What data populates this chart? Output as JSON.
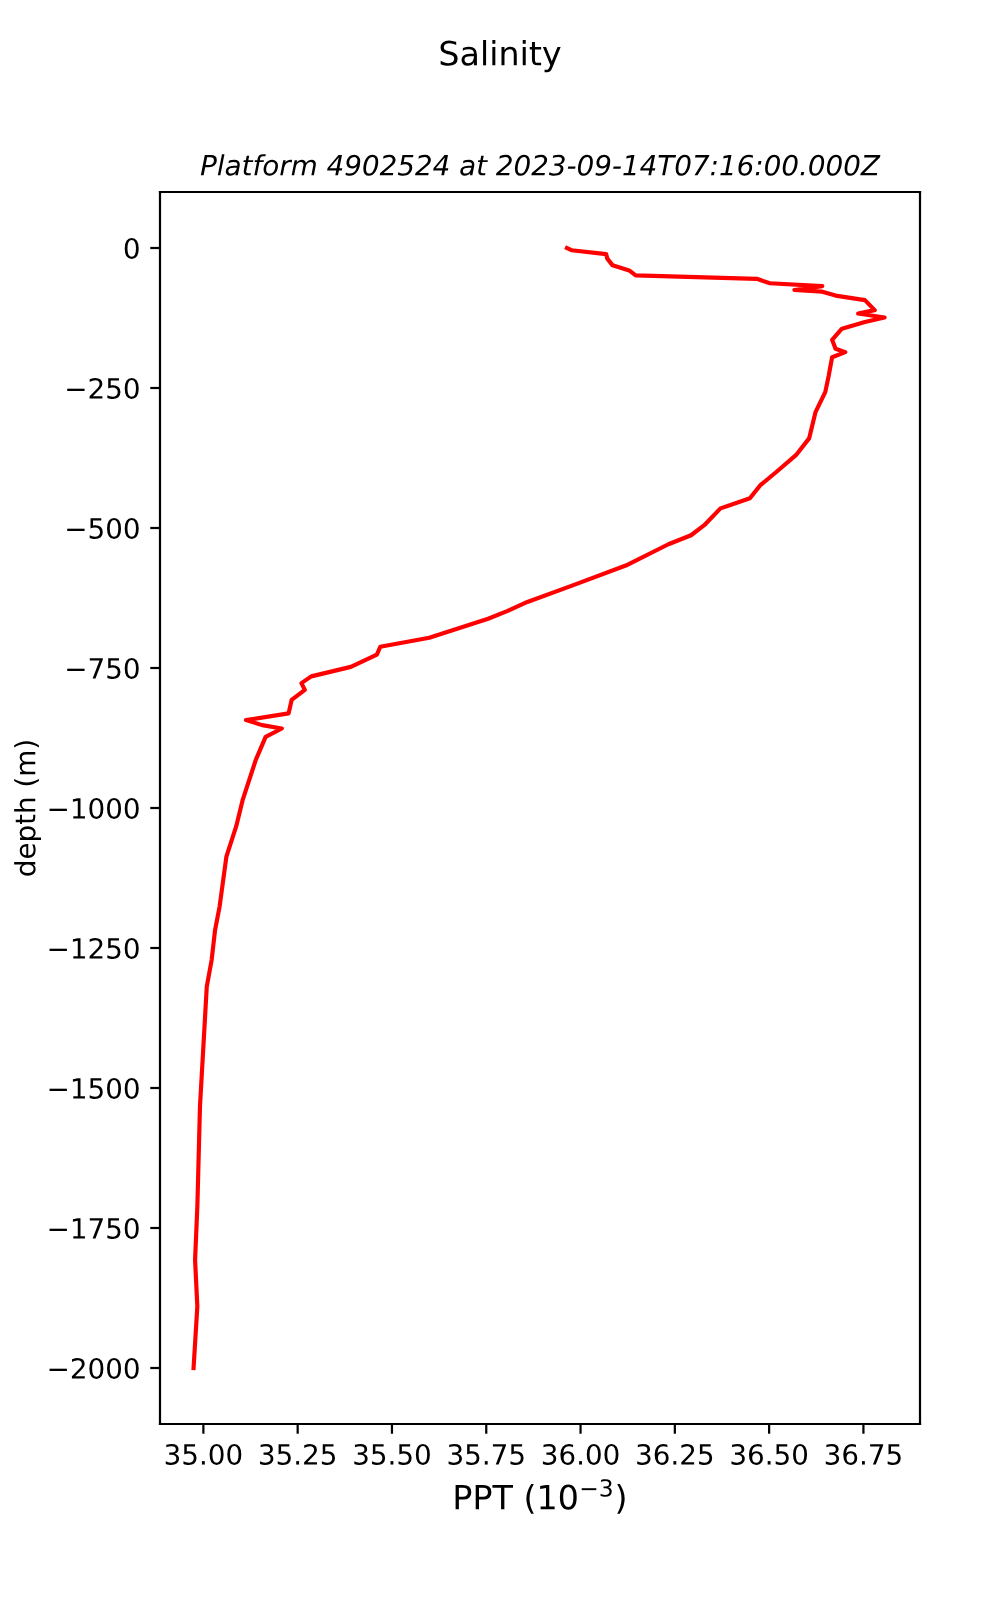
{
  "chart_data": {
    "type": "line",
    "title": "Salinity",
    "subtitle": "Platform 4902524 at 2023-09-14T07:16:00.000Z",
    "xlabel": "PPT (10$^{−3}$)",
    "ylabel": "depth (m)",
    "series": [
      {
        "color": "#ff0000",
        "x": [
          35.964,
          35.976,
          36.068,
          36.071,
          36.085,
          36.129,
          36.146,
          36.467,
          36.502,
          36.641,
          36.567,
          36.641,
          36.676,
          36.754,
          36.78,
          36.736,
          36.806,
          36.754,
          36.693,
          36.667,
          36.676,
          36.702,
          36.667,
          36.658,
          36.649,
          36.623,
          36.606,
          36.571,
          36.519,
          36.476,
          36.449,
          36.371,
          36.328,
          36.293,
          36.233,
          36.12,
          35.981,
          35.859,
          35.807,
          35.755,
          35.599,
          35.469,
          35.46,
          35.391,
          35.286,
          35.26,
          35.269,
          35.234,
          35.226,
          35.113,
          35.156,
          35.208,
          35.165,
          35.139,
          35.104,
          35.087,
          35.061,
          35.043,
          35.031,
          35.022,
          35.009,
          34.991,
          34.984,
          34.978,
          34.984,
          34.974
        ],
        "values": [
          0,
          -4,
          -11,
          -19,
          -31,
          -40,
          -49,
          -55,
          -63,
          -68,
          -75,
          -78,
          -85,
          -93,
          -111,
          -117,
          -124,
          -132,
          -144,
          -164,
          -180,
          -186,
          -195,
          -228,
          -257,
          -293,
          -340,
          -370,
          -400,
          -424,
          -447,
          -465,
          -495,
          -513,
          -529,
          -567,
          -602,
          -632,
          -648,
          -662,
          -696,
          -712,
          -726,
          -748,
          -765,
          -777,
          -789,
          -807,
          -831,
          -843,
          -852,
          -858,
          -873,
          -914,
          -986,
          -1033,
          -1087,
          -1176,
          -1218,
          -1271,
          -1319,
          -1533,
          -1712,
          -1807,
          -1890,
          -2000
        ]
      }
    ],
    "xlim": [
      34.885,
      36.9
    ],
    "ylim": [
      -2100,
      100
    ],
    "xticks": [
      {
        "value": 35,
        "label": "35.00"
      },
      {
        "value": 35.25,
        "label": "35.25"
      },
      {
        "value": 35.5,
        "label": "35.50"
      },
      {
        "value": 35.75,
        "label": "35.75"
      },
      {
        "value": 36,
        "label": "36.00"
      },
      {
        "value": 36.25,
        "label": "36.25"
      },
      {
        "value": 36.5,
        "label": "36.50"
      },
      {
        "value": 36.75,
        "label": "36.75"
      }
    ],
    "yticks": [
      0,
      {
        "value": -250,
        "label": "−250"
      },
      {
        "value": -500,
        "label": "−500"
      },
      {
        "value": -750,
        "label": "−750"
      },
      {
        "value": -1000,
        "label": "−1000"
      },
      {
        "value": -1250,
        "label": "−1250"
      },
      {
        "value": -1500,
        "label": "−1500"
      },
      {
        "value": -1750,
        "label": "−1750"
      },
      {
        "value": -2000,
        "label": "−2000"
      }
    ],
    "grid": false,
    "legend": false,
    "marker": "none",
    "line_style": "solid"
  }
}
